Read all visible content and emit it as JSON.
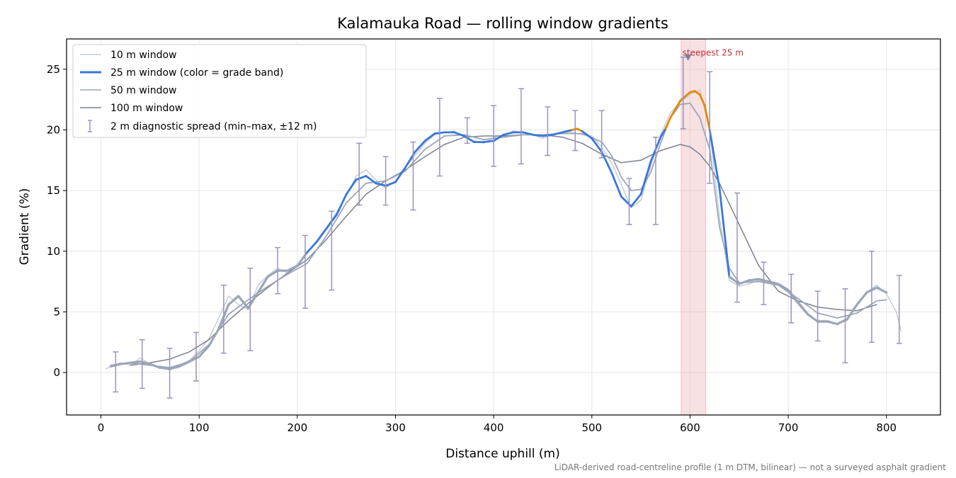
{
  "chart_data": {
    "type": "line",
    "title": "Kalamauka Road — rolling window gradients",
    "xlabel": "Distance uphill (m)",
    "ylabel": "Gradient (%)",
    "xlim": [
      -35,
      855
    ],
    "ylim": [
      -3.5,
      27.5
    ],
    "xticks": [
      0,
      100,
      200,
      300,
      400,
      500,
      600,
      700,
      800
    ],
    "yticks": [
      0,
      5,
      10,
      15,
      20,
      25
    ],
    "grid": true,
    "legend_position": "top-left",
    "footnote": "LiDAR-derived road-centreline profile (1 m DTM, bilinear) — not a surveyed asphalt gradient",
    "colors": {
      "w10": "#c4cad6",
      "w25_low": "#9aa7b8",
      "w25_mid": "#3a78d8",
      "w25_high": "#e08a00",
      "w50": "#9ea6b8",
      "w100": "#7c8091",
      "errorbar": "#9a94bb",
      "highlight": "#e89aa3",
      "annotation": "#c0303c"
    },
    "series": [
      {
        "name": "10 m window",
        "x": [
          5,
          10,
          20,
          30,
          40,
          50,
          60,
          70,
          80,
          90,
          100,
          110,
          120,
          130,
          140,
          150,
          160,
          170,
          180,
          190,
          200,
          210,
          220,
          230,
          240,
          250,
          260,
          270,
          280,
          290,
          300,
          310,
          320,
          330,
          340,
          350,
          360,
          370,
          380,
          390,
          400,
          410,
          420,
          430,
          440,
          450,
          460,
          470,
          480,
          490,
          500,
          510,
          520,
          530,
          540,
          550,
          560,
          570,
          580,
          590,
          600,
          610,
          620,
          630,
          640,
          650,
          660,
          670,
          680,
          690,
          700,
          710,
          720,
          730,
          740,
          750,
          760,
          770,
          780,
          790,
          800,
          810,
          815
        ],
        "y": [
          0.3,
          0.5,
          0.8,
          0.6,
          1.2,
          0.7,
          0.4,
          0.2,
          0.6,
          1.0,
          1.8,
          2.8,
          4.5,
          6.3,
          5.6,
          5.2,
          7.2,
          8.0,
          8.6,
          8.2,
          8.9,
          9.8,
          10.9,
          12.0,
          13.2,
          14.6,
          16.2,
          16.7,
          15.9,
          15.2,
          15.8,
          16.9,
          17.9,
          18.9,
          19.6,
          19.8,
          19.9,
          19.4,
          19.1,
          18.9,
          19.4,
          19.6,
          19.9,
          19.8,
          19.6,
          19.3,
          19.6,
          19.8,
          19.8,
          19.6,
          19.5,
          18.6,
          17.3,
          15.5,
          13.6,
          14.2,
          17.0,
          19.6,
          21.4,
          22.3,
          22.9,
          23.3,
          20.0,
          12.8,
          7.6,
          7.1,
          7.3,
          7.6,
          7.4,
          7.2,
          6.6,
          5.6,
          4.7,
          4.3,
          4.3,
          4.0,
          4.3,
          5.5,
          6.6,
          7.2,
          6.5,
          5.0,
          3.4
        ]
      },
      {
        "name": "25 m window (color = grade band)",
        "x": [
          10,
          20,
          30,
          40,
          50,
          60,
          70,
          80,
          90,
          100,
          110,
          120,
          130,
          140,
          150,
          160,
          170,
          180,
          190,
          200,
          210,
          220,
          230,
          240,
          250,
          260,
          270,
          280,
          290,
          300,
          310,
          320,
          330,
          340,
          350,
          360,
          370,
          380,
          390,
          400,
          410,
          420,
          430,
          440,
          450,
          460,
          470,
          480,
          485,
          490,
          500,
          510,
          520,
          530,
          540,
          550,
          560,
          570,
          575,
          580,
          590,
          600,
          605,
          610,
          615,
          620,
          630,
          640,
          650,
          660,
          670,
          680,
          690,
          700,
          710,
          720,
          730,
          740,
          750,
          760,
          770,
          780,
          790,
          800
        ],
        "y": [
          0.5,
          0.7,
          0.8,
          0.9,
          0.7,
          0.4,
          0.3,
          0.5,
          0.9,
          1.3,
          2.2,
          3.6,
          5.6,
          6.3,
          5.3,
          6.6,
          7.9,
          8.4,
          8.4,
          8.8,
          9.9,
          10.8,
          11.9,
          13.0,
          14.7,
          15.9,
          16.2,
          15.6,
          15.4,
          15.7,
          16.9,
          18.2,
          19.1,
          19.7,
          19.8,
          19.8,
          19.5,
          19.0,
          19.0,
          19.1,
          19.6,
          19.8,
          19.8,
          19.6,
          19.5,
          19.6,
          19.8,
          20.0,
          20.1,
          19.9,
          19.3,
          18.2,
          16.5,
          14.5,
          13.7,
          14.7,
          17.4,
          19.4,
          20.1,
          21.0,
          22.4,
          23.1,
          23.2,
          22.9,
          22.0,
          20.0,
          15.2,
          7.9,
          7.3,
          7.6,
          7.7,
          7.5,
          7.3,
          6.8,
          5.8,
          4.8,
          4.2,
          4.2,
          4.0,
          4.4,
          5.6,
          6.6,
          7.0,
          6.6
        ]
      },
      {
        "name": "50 m window",
        "x": [
          10,
          30,
          50,
          70,
          90,
          110,
          130,
          150,
          170,
          190,
          210,
          230,
          250,
          270,
          290,
          310,
          330,
          350,
          370,
          390,
          410,
          430,
          450,
          470,
          490,
          510,
          520,
          530,
          540,
          550,
          560,
          570,
          580,
          590,
          600,
          610,
          620,
          630,
          640,
          650,
          670,
          690,
          710,
          730,
          750,
          770,
          790,
          800
        ],
        "y": [
          0.6,
          0.8,
          0.6,
          0.4,
          0.9,
          2.3,
          4.8,
          6.0,
          7.1,
          8.1,
          9.0,
          11.3,
          14.0,
          15.6,
          15.8,
          16.6,
          18.4,
          19.5,
          19.6,
          19.2,
          19.4,
          19.6,
          19.6,
          19.7,
          19.7,
          19.0,
          17.9,
          16.1,
          15.0,
          15.1,
          16.5,
          18.9,
          21.0,
          22.1,
          22.2,
          21.0,
          18.4,
          12.0,
          8.6,
          7.4,
          7.5,
          7.2,
          6.1,
          4.9,
          4.5,
          4.9,
          5.9,
          6.0
        ]
      },
      {
        "name": "100 m window",
        "x": [
          30,
          50,
          70,
          90,
          110,
          130,
          150,
          170,
          190,
          210,
          230,
          250,
          270,
          290,
          310,
          330,
          350,
          370,
          390,
          410,
          430,
          450,
          470,
          490,
          510,
          530,
          550,
          570,
          590,
          600,
          610,
          620,
          630,
          650,
          670,
          690,
          710,
          730,
          750,
          770,
          790
        ],
        "y": [
          0.6,
          0.8,
          1.1,
          1.7,
          2.7,
          4.3,
          5.7,
          7.0,
          8.2,
          9.3,
          11.0,
          12.9,
          14.7,
          15.8,
          16.7,
          17.8,
          18.8,
          19.4,
          19.5,
          19.5,
          19.6,
          19.6,
          19.4,
          18.9,
          18.0,
          17.3,
          17.5,
          18.3,
          18.8,
          18.6,
          18.0,
          17.0,
          15.6,
          12.2,
          8.8,
          6.7,
          5.9,
          5.4,
          5.2,
          5.1,
          5.6
        ]
      }
    ],
    "errorbars": {
      "name": "2 m diagnostic spread (min–max, ±12 m)",
      "x": [
        15,
        42,
        70,
        97,
        125,
        152,
        180,
        208,
        235,
        263,
        290,
        318,
        345,
        373,
        400,
        428,
        455,
        483,
        510,
        538,
        565,
        593,
        620,
        648,
        675,
        703,
        730,
        758,
        785,
        813
      ],
      "low": [
        -1.6,
        -1.3,
        -2.1,
        -0.7,
        1.6,
        1.8,
        6.5,
        5.3,
        6.8,
        13.8,
        13.8,
        13.4,
        16.2,
        18.9,
        17.0,
        17.2,
        17.9,
        18.3,
        17.7,
        12.2,
        12.2,
        20.1,
        15.6,
        5.8,
        5.6,
        4.1,
        2.6,
        0.8,
        2.5,
        2.4
      ],
      "high": [
        1.7,
        2.7,
        2.0,
        3.3,
        7.2,
        8.6,
        10.3,
        11.3,
        13.3,
        18.9,
        17.8,
        19.0,
        22.6,
        21.0,
        22.0,
        23.4,
        21.9,
        21.6,
        21.6,
        16.0,
        19.4,
        26.0,
        24.8,
        14.8,
        9.1,
        8.1,
        6.7,
        6.9,
        10.0,
        8.0
      ]
    },
    "highlight_band": {
      "x0": 591,
      "x1": 616
    },
    "annotation": {
      "text": "steepest 25 m",
      "x": 598,
      "y": 26.0
    }
  }
}
